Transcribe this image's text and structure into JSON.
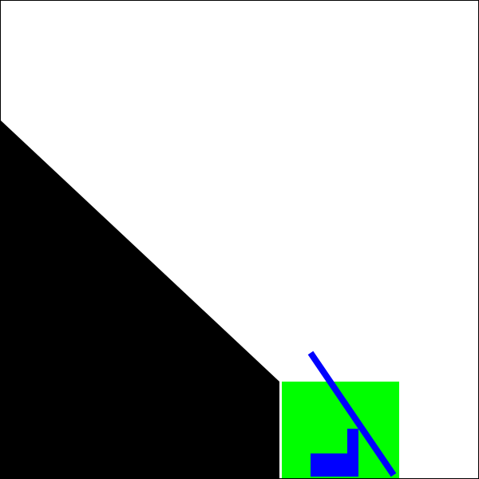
{
  "scene": {
    "background_color": "#ffffff",
    "frame_color": "#000000",
    "terrain_color": "#000000",
    "goal_zone_color": "#00ff00",
    "goal_zone_edge_color": "#ffffff",
    "pole_color": "#0000ff",
    "agent_color": "#0000ff"
  }
}
